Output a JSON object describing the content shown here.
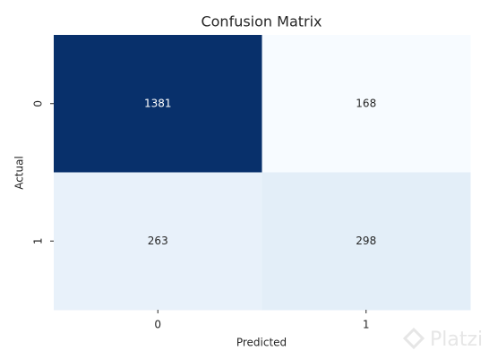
{
  "chart_data": {
    "type": "heatmap",
    "title": "Confusion Matrix",
    "xlabel": "Predicted",
    "ylabel": "Actual",
    "x_categories": [
      "0",
      "1"
    ],
    "y_categories": [
      "0",
      "1"
    ],
    "values": [
      [
        1381,
        168
      ],
      [
        263,
        298
      ]
    ],
    "colors": [
      [
        "#08306b",
        "#f7fbff"
      ],
      [
        "#e8f1fa",
        "#e3eef8"
      ]
    ],
    "watermark": "Platzi"
  }
}
